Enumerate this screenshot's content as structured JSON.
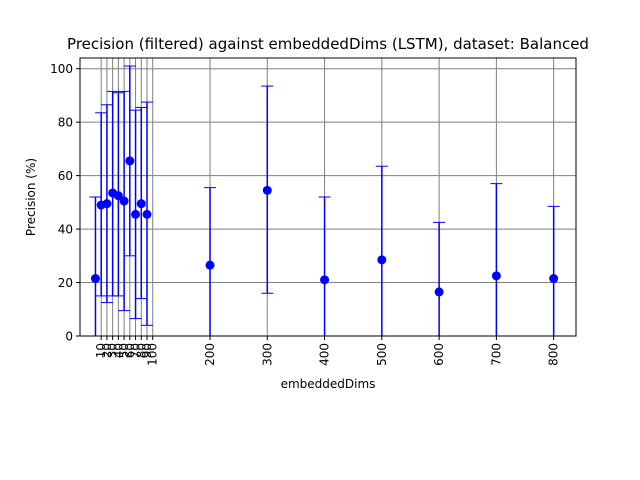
{
  "chart_data": {
    "type": "scatter",
    "title": "Precision (filtered) against embeddedDims (LSTM), dataset: Balanced",
    "xlabel": "embeddedDims",
    "ylabel": "Precision (%)",
    "xlim": [
      -27,
      839
    ],
    "ylim": [
      0,
      104
    ],
    "grid": true,
    "x_ticks": [
      10,
      20,
      30,
      40,
      50,
      60,
      70,
      80,
      90,
      100,
      200,
      300,
      400,
      500,
      600,
      700,
      800
    ],
    "x_tick_labels": [
      "10",
      "20",
      "30",
      "40",
      "50",
      "60",
      "70",
      "80",
      "90",
      "100",
      "200",
      "300",
      "400",
      "500",
      "600",
      "700",
      "800"
    ],
    "y_ticks": [
      0,
      20,
      40,
      60,
      80,
      100
    ],
    "y_tick_labels": [
      "0",
      "20",
      "40",
      "60",
      "80",
      "100"
    ],
    "series": [
      {
        "color": "#0000ff",
        "marker": "circle",
        "points": [
          {
            "x": 0,
            "y": 21.5,
            "lo": 0,
            "hi": 52
          },
          {
            "x": 10,
            "y": 49,
            "lo": 15,
            "hi": 83.5
          },
          {
            "x": 20,
            "y": 49.5,
            "lo": 12.5,
            "hi": 86.5
          },
          {
            "x": 30,
            "y": 53.5,
            "lo": 15,
            "hi": 91.5
          },
          {
            "x": 40,
            "y": 52.5,
            "lo": 15,
            "hi": 91
          },
          {
            "x": 50,
            "y": 50.5,
            "lo": 9.5,
            "hi": 91.5
          },
          {
            "x": 60,
            "y": 65.5,
            "lo": 30,
            "hi": 101
          },
          {
            "x": 70,
            "y": 45.5,
            "lo": 6.5,
            "hi": 84.5
          },
          {
            "x": 80,
            "y": 49.5,
            "lo": 14,
            "hi": 85.5
          },
          {
            "x": 90,
            "y": 45.5,
            "lo": 4,
            "hi": 87.5
          },
          {
            "x": 200,
            "y": 26.5,
            "lo": 0,
            "hi": 55.5
          },
          {
            "x": 300,
            "y": 54.5,
            "lo": 16,
            "hi": 93.5
          },
          {
            "x": 400,
            "y": 21,
            "lo": 0,
            "hi": 52
          },
          {
            "x": 500,
            "y": 28.5,
            "lo": 0,
            "hi": 63.5
          },
          {
            "x": 600,
            "y": 16.5,
            "lo": 0,
            "hi": 42.5
          },
          {
            "x": 700,
            "y": 22.5,
            "lo": 0,
            "hi": 57
          },
          {
            "x": 800,
            "y": 21.5,
            "lo": 0,
            "hi": 48.5
          }
        ]
      }
    ]
  }
}
